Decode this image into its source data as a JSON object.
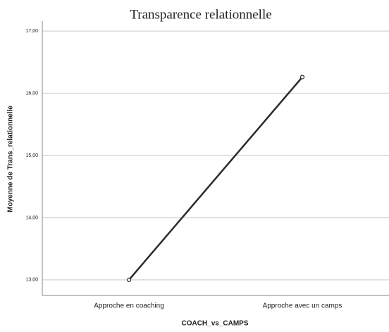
{
  "chart_data": {
    "type": "line",
    "title": "Transparence relationnelle",
    "x_label": "COACH_vs_CAMPS",
    "y_label": "Moyenne de Trans_relationnelle",
    "categories": [
      "Approche en coaching",
      "Approche avec un camps"
    ],
    "series": [
      {
        "name": null,
        "color": "#2b2b2b",
        "values": [
          13.0,
          16.26
        ]
      }
    ],
    "ylim": [
      12.75,
      17.16
    ],
    "yticks": [
      {
        "value": 13,
        "label": "13,00"
      },
      {
        "value": 14,
        "label": "14,00"
      },
      {
        "value": 15,
        "label": "15,00"
      },
      {
        "value": 16,
        "label": "16,00"
      },
      {
        "value": 17,
        "label": "17,00"
      }
    ],
    "grid": true
  }
}
